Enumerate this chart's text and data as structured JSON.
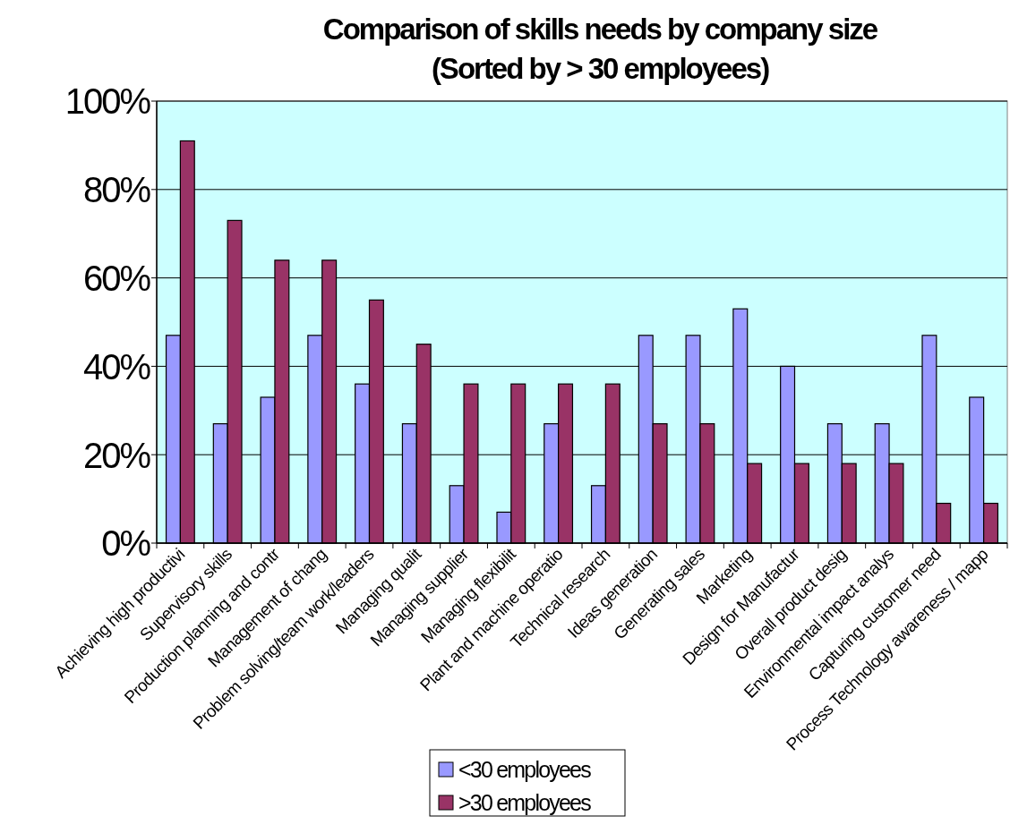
{
  "chart_data": {
    "type": "bar",
    "title": "Comparison of skills needs by company size",
    "subtitle": "(Sorted by > 30 employees)",
    "categories": [
      "Achieving high productivi",
      "Supervisory skills",
      "Production planning and contr",
      "Management of chang",
      "Problem solving/team work/leaders",
      "Managing qualit",
      "Managing supplier",
      "Managing flexibilit",
      "Plant and machine operatio",
      "Technical research",
      "Ideas generation",
      "Generating sales",
      "Marketing",
      "Design for Manufactur",
      "Overall product desig",
      "Environmental impact analys",
      "Capturing customer need",
      "Process Technology awareness / mapp"
    ],
    "series": [
      {
        "name": "<30 employees",
        "color": "#9999ff",
        "values": [
          47,
          27,
          33,
          47,
          36,
          27,
          13,
          7,
          27,
          13,
          47,
          47,
          53,
          40,
          27,
          27,
          47,
          33
        ]
      },
      {
        "name": ">30 employees",
        "color": "#993366",
        "values": [
          91,
          73,
          64,
          64,
          55,
          45,
          36,
          36,
          36,
          36,
          27,
          27,
          18,
          18,
          18,
          18,
          9,
          9
        ]
      }
    ],
    "ylim": [
      0,
      100
    ],
    "yticks": [
      {
        "value": 0,
        "label": "0%"
      },
      {
        "value": 20,
        "label": "20%"
      },
      {
        "value": 40,
        "label": "40%"
      },
      {
        "value": 60,
        "label": "60%"
      },
      {
        "value": 80,
        "label": "80%"
      },
      {
        "value": 100,
        "label": "100%"
      }
    ],
    "grid": "y",
    "legend": "bottom"
  }
}
